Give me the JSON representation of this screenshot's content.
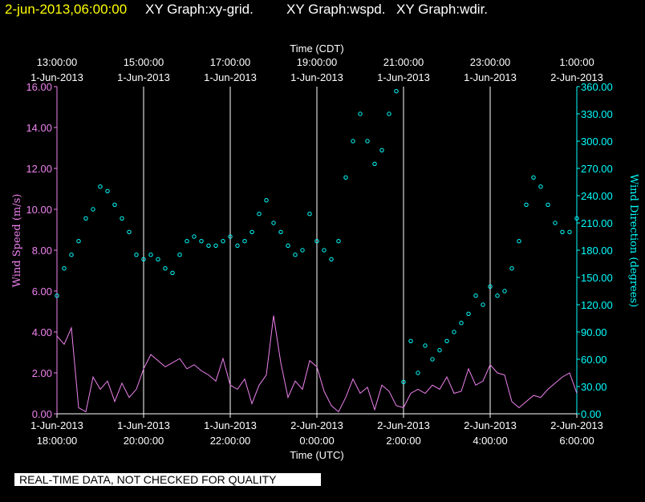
{
  "header": {
    "date": "2-jun-2013,06:00:00",
    "titles": [
      "XY Graph:xy-grid.",
      "XY Graph:wspd.",
      "XY Graph:wdir."
    ]
  },
  "notice": "REAL-TIME DATA, NOT CHECKED FOR QUALITY",
  "colors": {
    "wspd": "#ee82ee",
    "wdir": "#00ffff",
    "grid": "#ffffff",
    "background": "#000000",
    "date": "#ffff00"
  },
  "chart_data": {
    "type": "line",
    "grid": true,
    "top_axis": {
      "label": "Time (CDT)",
      "ticks": [
        {
          "time": "13:00:00",
          "date": "1-Jun-2013"
        },
        {
          "time": "15:00:00",
          "date": "1-Jun-2013"
        },
        {
          "time": "17:00:00",
          "date": "1-Jun-2013"
        },
        {
          "time": "19:00:00",
          "date": "1-Jun-2013"
        },
        {
          "time": "21:00:00",
          "date": "1-Jun-2013"
        },
        {
          "time": "23:00:00",
          "date": "1-Jun-2013"
        },
        {
          "time": "1:00:00",
          "date": "2-Jun-2013"
        }
      ]
    },
    "bottom_axis": {
      "label": "Time (UTC)",
      "ticks": [
        {
          "date": "1-Jun-2013",
          "time": "18:00:00"
        },
        {
          "date": "1-Jun-2013",
          "time": "20:00:00"
        },
        {
          "date": "1-Jun-2013",
          "time": "22:00:00"
        },
        {
          "date": "2-Jun-2013",
          "time": "0:00:00"
        },
        {
          "date": "2-Jun-2013",
          "time": "2:00:00"
        },
        {
          "date": "2-Jun-2013",
          "time": "4:00:00"
        },
        {
          "date": "2-Jun-2013",
          "time": "6:00:00"
        }
      ],
      "xlim": [
        "2013-06-01 18:00",
        "2013-06-02 06:00"
      ]
    },
    "left_axis": {
      "label": "Wind Speed (m/s)",
      "ticks": [
        "0.00",
        "2.00",
        "4.00",
        "6.00",
        "8.00",
        "10.00",
        "12.00",
        "14.00",
        "16.00"
      ],
      "ylim": [
        0,
        16
      ]
    },
    "right_axis": {
      "label": "Wind Direction (degrees)",
      "ticks": [
        "0.00",
        "30.00",
        "60.00",
        "90.00",
        "120.00",
        "150.00",
        "180.00",
        "210.00",
        "240.00",
        "270.00",
        "300.00",
        "330.00",
        "360.00"
      ],
      "ylim": [
        0,
        360
      ]
    },
    "series": [
      {
        "name": "Wind Speed (m/s)",
        "style": "line",
        "x": [
          "18:00",
          "18:10",
          "18:20",
          "18:30",
          "18:40",
          "18:50",
          "19:00",
          "19:10",
          "19:20",
          "19:30",
          "19:40",
          "19:50",
          "20:00",
          "20:10",
          "20:20",
          "20:30",
          "20:40",
          "20:50",
          "21:00",
          "21:10",
          "21:20",
          "21:30",
          "21:40",
          "21:50",
          "22:00",
          "22:10",
          "22:20",
          "22:30",
          "22:40",
          "22:50",
          "23:00",
          "23:10",
          "23:20",
          "23:30",
          "23:40",
          "23:50",
          "00:00",
          "00:10",
          "00:20",
          "00:30",
          "00:40",
          "00:50",
          "01:00",
          "01:10",
          "01:20",
          "01:30",
          "01:40",
          "01:50",
          "02:00",
          "02:10",
          "02:20",
          "02:30",
          "02:40",
          "02:50",
          "03:00",
          "03:10",
          "03:20",
          "03:30",
          "03:40",
          "03:50",
          "04:00",
          "04:10",
          "04:20",
          "04:30",
          "04:40",
          "04:50",
          "05:00",
          "05:10",
          "05:20",
          "05:30",
          "05:40",
          "05:50",
          "06:00"
        ],
        "y": [
          3.8,
          3.4,
          4.2,
          0.3,
          0.1,
          1.8,
          1.2,
          1.6,
          0.6,
          1.5,
          0.8,
          1.2,
          2.2,
          2.9,
          2.6,
          2.3,
          2.5,
          2.7,
          2.2,
          2.4,
          2.1,
          1.9,
          1.6,
          2.7,
          1.4,
          1.2,
          1.7,
          0.5,
          1.4,
          1.9,
          4.8,
          2.5,
          0.8,
          1.6,
          1.2,
          2.6,
          2.3,
          1.1,
          0.4,
          0.1,
          0.8,
          1.7,
          1.0,
          1.3,
          0.2,
          1.4,
          1.1,
          0.4,
          0.3,
          1.0,
          1.2,
          1.0,
          1.4,
          1.2,
          1.8,
          1.0,
          1.1,
          2.2,
          1.4,
          1.6,
          2.4,
          2.0,
          1.9,
          0.6,
          0.3,
          0.6,
          0.9,
          0.8,
          1.2,
          1.5,
          1.8,
          2.0,
          1.0
        ]
      },
      {
        "name": "Wind Direction (degrees)",
        "style": "scatter",
        "x": [
          "18:00",
          "18:10",
          "18:20",
          "18:30",
          "18:40",
          "18:50",
          "19:00",
          "19:10",
          "19:20",
          "19:30",
          "19:40",
          "19:50",
          "20:00",
          "20:10",
          "20:20",
          "20:30",
          "20:40",
          "20:50",
          "21:00",
          "21:10",
          "21:20",
          "21:30",
          "21:40",
          "21:50",
          "22:00",
          "22:10",
          "22:20",
          "22:30",
          "22:40",
          "22:50",
          "23:00",
          "23:10",
          "23:20",
          "23:30",
          "23:40",
          "23:50",
          "00:00",
          "00:10",
          "00:20",
          "00:30",
          "00:40",
          "00:50",
          "01:00",
          "01:10",
          "01:20",
          "01:30",
          "01:40",
          "01:50",
          "02:00",
          "02:10",
          "02:20",
          "02:30",
          "02:40",
          "02:50",
          "03:00",
          "03:10",
          "03:20",
          "03:30",
          "03:40",
          "03:50",
          "04:00",
          "04:10",
          "04:20",
          "04:30",
          "04:40",
          "04:50",
          "05:00",
          "05:10",
          "05:20",
          "05:30",
          "05:40",
          "05:50",
          "06:00"
        ],
        "y": [
          130,
          160,
          175,
          190,
          215,
          225,
          250,
          245,
          230,
          215,
          200,
          175,
          170,
          175,
          170,
          160,
          155,
          175,
          190,
          195,
          190,
          185,
          185,
          190,
          195,
          185,
          190,
          200,
          220,
          235,
          210,
          200,
          185,
          175,
          180,
          220,
          190,
          180,
          170,
          190,
          260,
          300,
          330,
          300,
          275,
          290,
          330,
          355,
          35,
          80,
          45,
          75,
          60,
          70,
          80,
          90,
          100,
          110,
          130,
          120,
          140,
          130,
          135,
          160,
          190,
          230,
          260,
          250,
          230,
          210,
          200,
          200,
          215
        ]
      }
    ]
  }
}
